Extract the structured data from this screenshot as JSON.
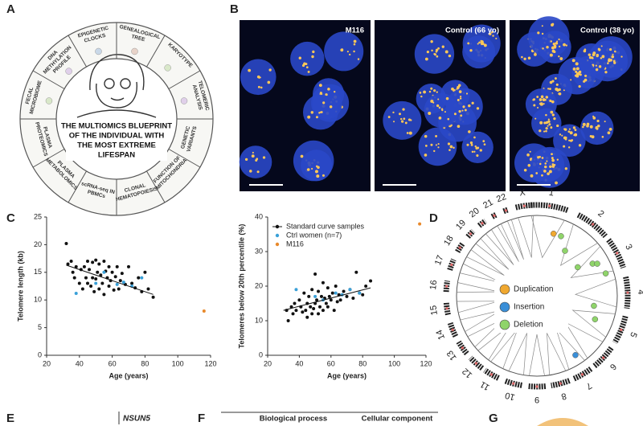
{
  "panel_labels": [
    "A",
    "B",
    "C",
    "D",
    "E",
    "F",
    "G"
  ],
  "blueprint": {
    "center": [
      "THE MULTIOMICS BLUEPRINT",
      "OF THE INDIVIDUAL WITH",
      "THE MOST EXTREME",
      "LIFESPAN"
    ],
    "segments": [
      {
        "lines": [
          "EPIGENETIC",
          "CLOCKS"
        ]
      },
      {
        "lines": [
          "GENEALOGICAL",
          "TREE"
        ]
      },
      {
        "lines": [
          "KARYOTYPE"
        ]
      },
      {
        "lines": [
          "TELOMERIC",
          "ANALYSIS"
        ]
      },
      {
        "lines": [
          "GENETIC",
          "VARIANTS"
        ]
      },
      {
        "lines": [
          "FUNCTION OF",
          "MITOCHONDRIA"
        ]
      },
      {
        "lines": [
          "CLONAL",
          "HEMATOPOIESIS"
        ]
      },
      {
        "lines": [
          "scRNA-seq IN",
          "PBMCs"
        ]
      },
      {
        "lines": [
          "PLASMA",
          "METABOLOMICS"
        ]
      },
      {
        "lines": [
          "PLASMA",
          "PROTEOMICS"
        ]
      },
      {
        "lines": [
          "FECAL",
          "MICROBIOME"
        ]
      },
      {
        "lines": [
          "DNA",
          "METHYLATION",
          "PROFILE"
        ]
      }
    ]
  },
  "microscopy": {
    "labels": [
      "M116",
      "Control (66 yo)",
      "Control (38 yo)"
    ]
  },
  "chart_data": [
    {
      "type": "scatter",
      "xlabel": "Age (years)",
      "ylabel": "Telomere length (kb)",
      "xlim": [
        20,
        120
      ],
      "xticks": [
        20,
        40,
        60,
        80,
        100,
        120
      ],
      "ylim": [
        0,
        25
      ],
      "yticks": [
        0,
        5,
        10,
        15,
        20,
        25
      ],
      "legend": false,
      "series": [
        {
          "color": "#111111",
          "x": [
            32,
            33,
            35,
            36,
            37,
            38,
            40,
            41,
            42,
            43,
            44,
            45,
            45,
            46,
            47,
            48,
            48,
            49,
            50,
            50,
            51,
            52,
            52,
            53,
            54,
            55,
            55,
            56,
            57,
            58,
            58,
            59,
            60,
            61,
            62,
            63,
            64,
            65,
            66,
            68,
            70,
            72,
            74,
            76,
            78,
            80,
            82,
            85
          ],
          "values": [
            20.2,
            16.5,
            17,
            15,
            14,
            16,
            13,
            15.5,
            12,
            16,
            14,
            17,
            13,
            15.5,
            12.5,
            16.8,
            14,
            11.5,
            17.2,
            13.8,
            15,
            12,
            16.5,
            14.5,
            13,
            17,
            11,
            15.2,
            14,
            16,
            12.5,
            13.5,
            15,
            11.8,
            14.2,
            16,
            12,
            13.5,
            14.8,
            12.8,
            16,
            13,
            12.2,
            14,
            11.5,
            15,
            12,
            10.5
          ]
        },
        {
          "color": "#3aa0d8",
          "x": [
            38,
            50,
            55,
            63,
            67,
            72,
            78
          ],
          "values": [
            11.2,
            13,
            15,
            12.8,
            13.2,
            12.5,
            14
          ]
        },
        {
          "color": "#e8892b",
          "x": [
            116
          ],
          "values": [
            8
          ]
        }
      ],
      "trendline": {
        "color": "#111111",
        "x": [
          32,
          85
        ],
        "values": [
          16.3,
          11
        ]
      }
    },
    {
      "type": "scatter",
      "xlabel": "Age (years)",
      "ylabel": "Telomeres below 20th percentile (%)",
      "xlim": [
        20,
        120
      ],
      "xticks": [
        20,
        40,
        60,
        80,
        100,
        120
      ],
      "ylim": [
        0,
        40
      ],
      "yticks": [
        0,
        10,
        20,
        30,
        40
      ],
      "legend": "upper left",
      "series": [
        {
          "name": "Standard curve samples",
          "color": "#111111",
          "x": [
            32,
            33,
            35,
            36,
            37,
            38,
            40,
            41,
            42,
            43,
            44,
            45,
            45,
            46,
            47,
            48,
            48,
            49,
            50,
            50,
            51,
            52,
            52,
            53,
            54,
            55,
            55,
            56,
            57,
            58,
            58,
            59,
            60,
            61,
            62,
            63,
            64,
            65,
            66,
            68,
            70,
            72,
            74,
            76,
            78,
            80,
            82,
            85
          ],
          "values": [
            13,
            10,
            14,
            12,
            15,
            13,
            16,
            14,
            12.5,
            18,
            13,
            15,
            11,
            17,
            14,
            19,
            12,
            13.5,
            23.5,
            15,
            16,
            12,
            18.5,
            14,
            17,
            21,
            13,
            16.5,
            15,
            19.5,
            14,
            17,
            16,
            18,
            13,
            20,
            15.5,
            17.5,
            16,
            18.5,
            17,
            19,
            16.5,
            24,
            18,
            17.5,
            20,
            21.5
          ]
        },
        {
          "name": "Ctrl women (n=7)",
          "color": "#3aa0d8",
          "x": [
            38,
            50,
            55,
            63,
            67,
            72,
            78
          ],
          "values": [
            19,
            17,
            16,
            18,
            17.5,
            19,
            18
          ]
        },
        {
          "name": "M116",
          "color": "#e8892b",
          "x": [
            116
          ],
          "values": [
            38
          ]
        }
      ],
      "trendline": {
        "color": "#111111",
        "x": [
          30,
          85
        ],
        "values": [
          13,
          19.5
        ]
      }
    }
  ],
  "circos": {
    "chromosomes": [
      "1",
      "2",
      "3",
      "4",
      "5",
      "6",
      "7",
      "8",
      "9",
      "10",
      "11",
      "12",
      "13",
      "14",
      "15",
      "16",
      "17",
      "18",
      "19",
      "20",
      "21",
      "22",
      "X"
    ],
    "legend": [
      {
        "label": "Duplication",
        "color": "#f0a830"
      },
      {
        "label": "Insertion",
        "color": "#3a8fd8"
      },
      {
        "label": "Deletion",
        "color": "#8fd46a"
      }
    ]
  },
  "panel_e": {
    "gene": "NSUN5"
  },
  "panel_f": {
    "headers": [
      "Biological process",
      "Cellular component"
    ]
  }
}
